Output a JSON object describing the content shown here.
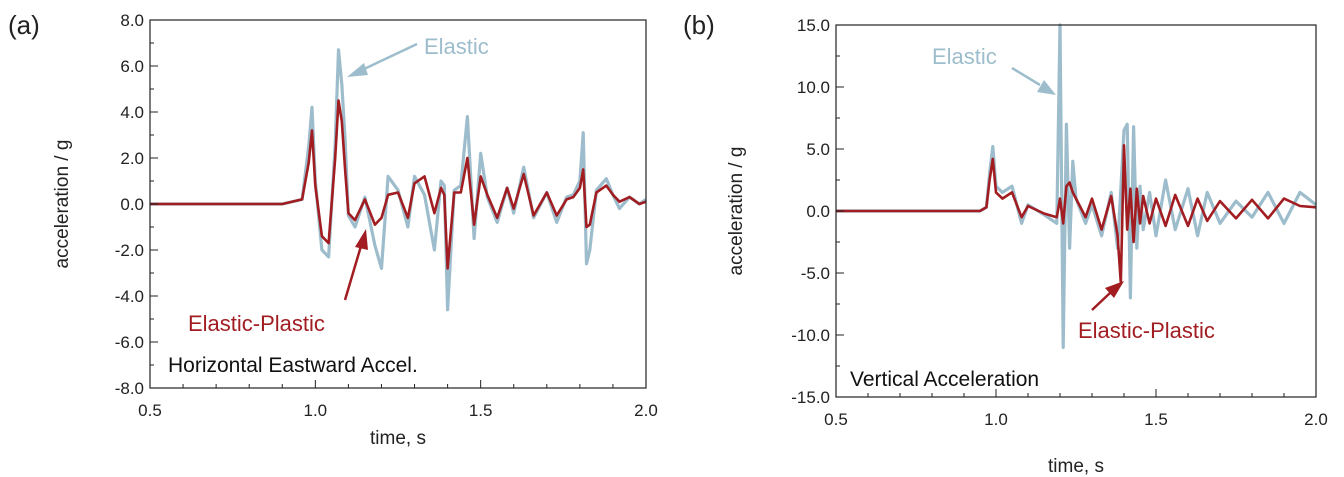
{
  "colors": {
    "elastic": "#9dbdcc",
    "elastic_plastic": "#a11d21"
  },
  "chart_data": [
    {
      "type": "line",
      "panel_label": "(a)",
      "annotation": "Horizontal Eastward Accel.",
      "xlabel": "time, s",
      "ylabel": "acceleration / g",
      "xlim": [
        0.5,
        2.0
      ],
      "ylim": [
        -8.0,
        8.0
      ],
      "xticks": [
        0.5,
        1.0,
        1.5,
        2.0
      ],
      "xtick_labels": [
        "0.5",
        "1.0",
        "1.5",
        "2.0"
      ],
      "yticks": [
        -8,
        -6,
        -4,
        -2,
        0,
        2,
        4,
        6,
        8
      ],
      "ytick_labels": [
        "-8.0",
        "-6.0",
        "-4.0",
        "-2.0",
        "0.0",
        "2.0",
        "4.0",
        "6.0",
        "8.0"
      ],
      "grid": false,
      "series": [
        {
          "name": "Elastic",
          "x": [
            0.5,
            0.9,
            0.96,
            0.98,
            0.99,
            1.0,
            1.02,
            1.04,
            1.06,
            1.07,
            1.08,
            1.09,
            1.1,
            1.12,
            1.15,
            1.18,
            1.2,
            1.22,
            1.25,
            1.28,
            1.3,
            1.33,
            1.36,
            1.38,
            1.39,
            1.4,
            1.42,
            1.44,
            1.46,
            1.48,
            1.5,
            1.52,
            1.55,
            1.58,
            1.6,
            1.63,
            1.66,
            1.7,
            1.73,
            1.76,
            1.78,
            1.8,
            1.81,
            1.82,
            1.83,
            1.85,
            1.88,
            1.9,
            1.92,
            1.95,
            1.98,
            2.0
          ],
          "y": [
            0.0,
            0.0,
            0.2,
            2.5,
            4.2,
            1.0,
            -2.0,
            -2.3,
            2.6,
            6.7,
            5.2,
            2.8,
            -0.5,
            -1.0,
            0.3,
            -1.8,
            -2.8,
            1.2,
            0.6,
            -1.0,
            1.2,
            0.4,
            -2.0,
            1.0,
            0.8,
            -4.6,
            0.6,
            0.8,
            3.8,
            -1.5,
            2.2,
            0.3,
            -0.8,
            0.7,
            -0.4,
            1.6,
            -0.6,
            0.5,
            -0.8,
            0.3,
            0.4,
            1.0,
            3.1,
            -2.6,
            -2.0,
            0.6,
            1.1,
            0.4,
            -0.2,
            0.3,
            0.0,
            0.2
          ]
        },
        {
          "name": "Elastic-Plastic",
          "x": [
            0.5,
            0.9,
            0.96,
            0.98,
            0.99,
            1.0,
            1.02,
            1.04,
            1.06,
            1.07,
            1.08,
            1.09,
            1.1,
            1.12,
            1.15,
            1.18,
            1.2,
            1.22,
            1.25,
            1.28,
            1.3,
            1.33,
            1.36,
            1.38,
            1.39,
            1.4,
            1.42,
            1.44,
            1.46,
            1.48,
            1.5,
            1.52,
            1.55,
            1.58,
            1.6,
            1.63,
            1.66,
            1.7,
            1.73,
            1.76,
            1.78,
            1.8,
            1.81,
            1.82,
            1.83,
            1.85,
            1.88,
            1.9,
            1.92,
            1.95,
            1.98,
            2.0
          ],
          "y": [
            0.0,
            0.0,
            0.2,
            1.8,
            3.2,
            0.8,
            -1.4,
            -1.7,
            2.0,
            4.5,
            3.6,
            1.5,
            -0.4,
            -0.7,
            0.2,
            -0.9,
            -0.6,
            0.4,
            0.5,
            -0.6,
            0.9,
            1.2,
            -0.4,
            0.7,
            0.4,
            -2.8,
            0.5,
            0.5,
            2.0,
            -0.9,
            1.2,
            0.4,
            -0.6,
            0.7,
            -0.2,
            1.3,
            -0.5,
            0.5,
            -0.5,
            0.2,
            0.3,
            0.7,
            1.5,
            -1.0,
            -0.9,
            0.5,
            0.8,
            0.4,
            0.1,
            0.3,
            0.0,
            0.1
          ]
        }
      ]
    },
    {
      "type": "line",
      "panel_label": "(b)",
      "annotation": "Vertical Acceleration",
      "xlabel": "time, s",
      "ylabel": "acceleration / g",
      "xlim": [
        0.5,
        2.0
      ],
      "ylim": [
        -15.0,
        15.0
      ],
      "xticks": [
        0.5,
        1.0,
        1.5,
        2.0
      ],
      "xtick_labels": [
        "0.5",
        "1.0",
        "1.5",
        "2.0"
      ],
      "yticks": [
        -15,
        -10,
        -5,
        0,
        5,
        10,
        15
      ],
      "ytick_labels": [
        "-15.0",
        "-10.0",
        "-5.0",
        "0.0",
        "5.0",
        "10.0",
        "15.0"
      ],
      "grid": false,
      "series": [
        {
          "name": "Elastic",
          "x": [
            0.5,
            0.95,
            0.97,
            0.98,
            0.99,
            1.0,
            1.02,
            1.05,
            1.08,
            1.1,
            1.15,
            1.19,
            1.2,
            1.21,
            1.22,
            1.23,
            1.24,
            1.25,
            1.28,
            1.3,
            1.33,
            1.36,
            1.38,
            1.4,
            1.41,
            1.42,
            1.43,
            1.44,
            1.45,
            1.46,
            1.48,
            1.5,
            1.53,
            1.56,
            1.6,
            1.63,
            1.66,
            1.7,
            1.75,
            1.8,
            1.85,
            1.9,
            1.95,
            2.0
          ],
          "y": [
            0.0,
            0.0,
            0.3,
            3.0,
            5.2,
            2.0,
            1.5,
            2.0,
            -1.0,
            0.5,
            -0.3,
            -1.0,
            15.0,
            -11.0,
            7.0,
            -3.0,
            4.0,
            1.0,
            -1.0,
            0.5,
            -2.0,
            1.5,
            -3.0,
            6.5,
            7.0,
            -7.0,
            6.8,
            -3.0,
            2.0,
            -1.5,
            1.5,
            -2.0,
            2.5,
            -1.5,
            1.8,
            -2.0,
            1.5,
            -1.0,
            0.8,
            -0.5,
            1.5,
            -1.0,
            1.5,
            0.5
          ]
        },
        {
          "name": "Elastic-Plastic",
          "x": [
            0.5,
            0.95,
            0.97,
            0.98,
            0.99,
            1.0,
            1.02,
            1.05,
            1.08,
            1.1,
            1.15,
            1.19,
            1.2,
            1.21,
            1.22,
            1.23,
            1.24,
            1.25,
            1.28,
            1.3,
            1.33,
            1.36,
            1.38,
            1.39,
            1.4,
            1.41,
            1.42,
            1.43,
            1.44,
            1.45,
            1.46,
            1.48,
            1.5,
            1.53,
            1.56,
            1.6,
            1.63,
            1.66,
            1.7,
            1.75,
            1.8,
            1.85,
            1.9,
            1.95,
            2.0
          ],
          "y": [
            0.0,
            0.0,
            0.3,
            2.5,
            4.2,
            1.5,
            1.0,
            1.5,
            -0.5,
            0.4,
            -0.2,
            -0.5,
            1.0,
            -1.0,
            2.0,
            2.3,
            1.5,
            1.0,
            -0.5,
            1.0,
            -1.5,
            1.2,
            -2.0,
            -5.8,
            5.3,
            -1.5,
            1.8,
            -2.5,
            1.8,
            -1.0,
            1.2,
            -1.0,
            1.0,
            -1.2,
            1.3,
            -1.2,
            1.0,
            -0.8,
            0.8,
            -0.6,
            0.9,
            -0.6,
            1.0,
            0.4,
            0.3
          ]
        }
      ]
    }
  ]
}
